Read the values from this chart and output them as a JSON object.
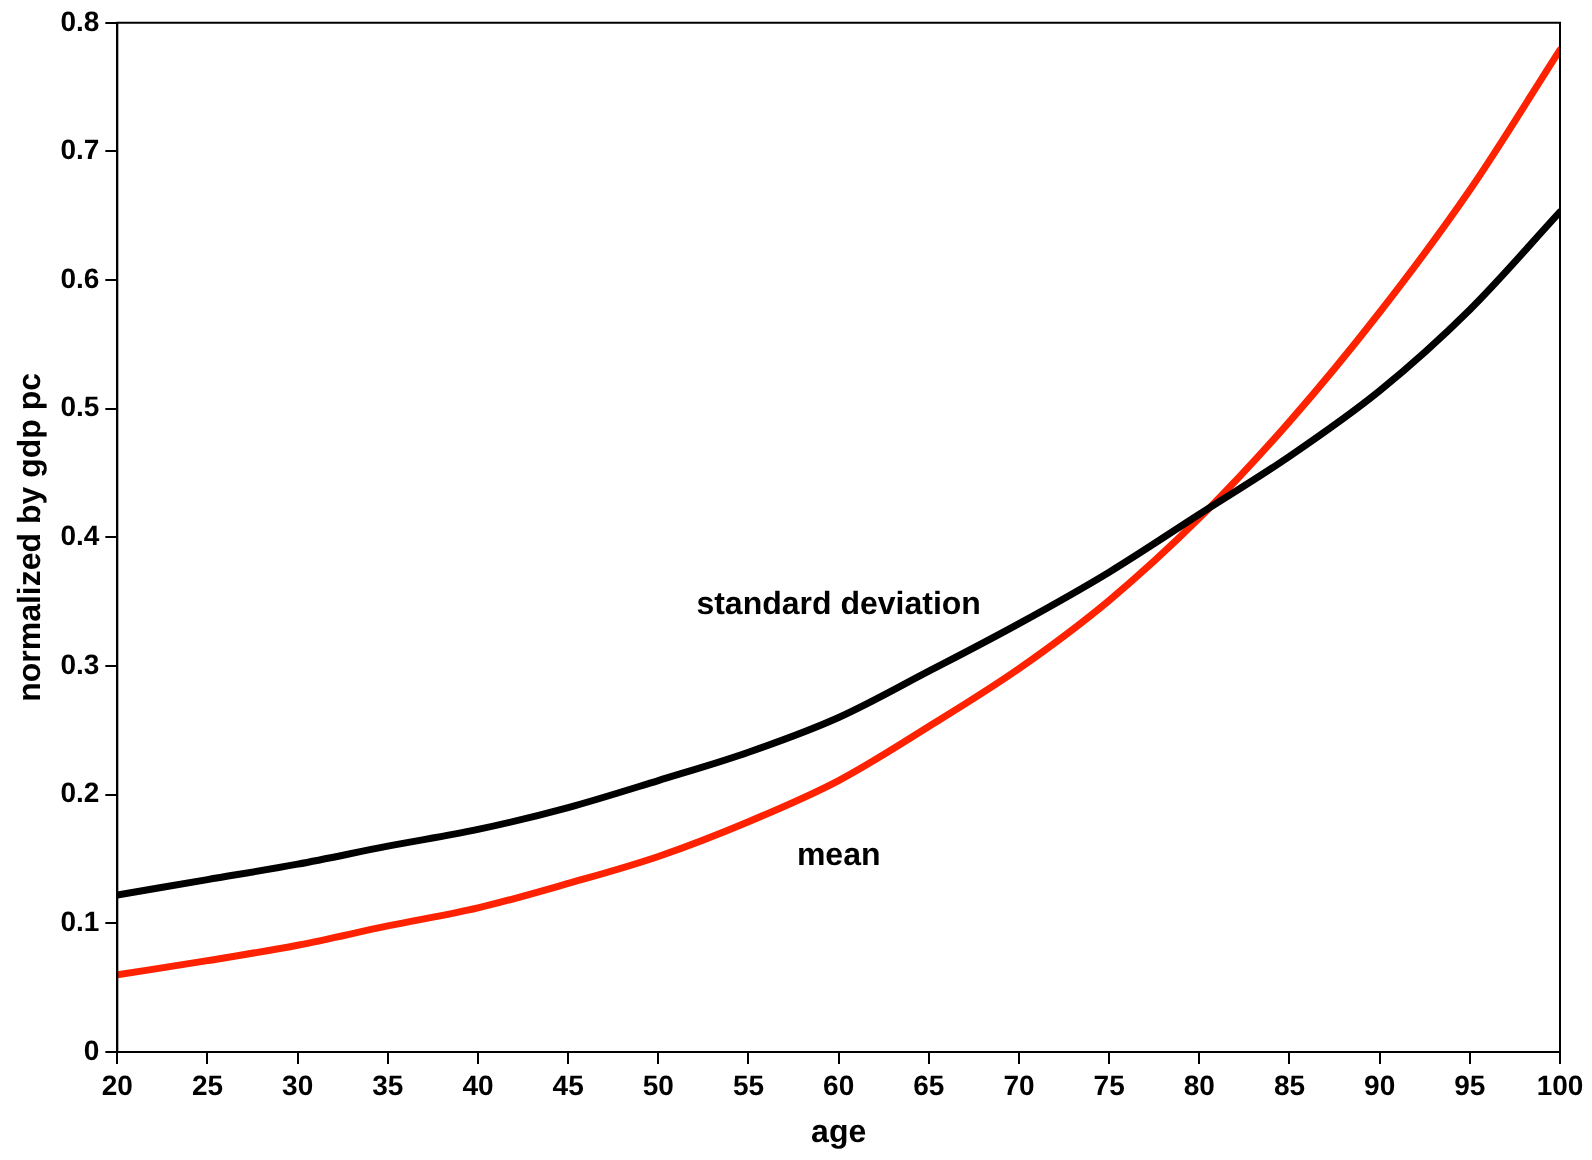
{
  "chart_data": {
    "type": "line",
    "xlabel": "age",
    "ylabel": "normalized by gdp pc",
    "x": [
      20,
      25,
      30,
      35,
      40,
      45,
      50,
      55,
      60,
      65,
      70,
      75,
      80,
      85,
      90,
      95,
      100
    ],
    "series": [
      {
        "name": "standard deviation",
        "color": "#000000",
        "values": [
          0.122,
          0.134,
          0.146,
          0.16,
          0.173,
          0.19,
          0.211,
          0.233,
          0.26,
          0.296,
          0.333,
          0.373,
          0.418,
          0.463,
          0.514,
          0.577,
          0.653
        ]
      },
      {
        "name": "mean",
        "color": "#ff2200",
        "values": [
          0.06,
          0.071,
          0.083,
          0.098,
          0.112,
          0.131,
          0.152,
          0.179,
          0.211,
          0.253,
          0.298,
          0.351,
          0.415,
          0.49,
          0.575,
          0.67,
          0.779
        ]
      }
    ],
    "xlim": [
      20,
      100
    ],
    "xticks": [
      20,
      25,
      30,
      35,
      40,
      45,
      50,
      55,
      60,
      65,
      70,
      75,
      80,
      85,
      90,
      95,
      100
    ],
    "ylim": [
      0,
      0.8
    ],
    "yticks": [
      0,
      0.1,
      0.2,
      0.3,
      0.4,
      0.5,
      0.6,
      0.7,
      0.8
    ],
    "grid": false,
    "legend": false,
    "marker": "none",
    "line_style": "solid"
  }
}
